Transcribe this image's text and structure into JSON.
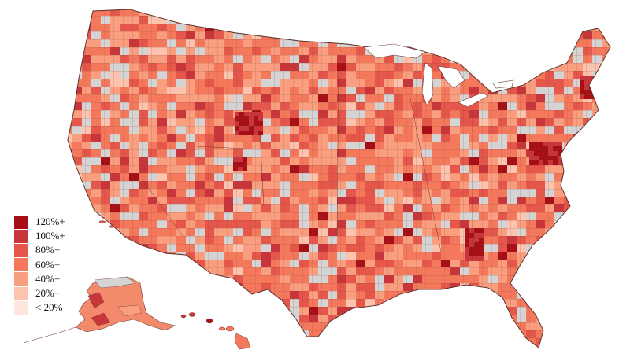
{
  "legend": {
    "entries": [
      {
        "label": "120%+",
        "color": "#a50f15"
      },
      {
        "label": "100%+",
        "color": "#c8353b"
      },
      {
        "label": "80%+",
        "color": "#e4574a"
      },
      {
        "label": "60%+",
        "color": "#f4795c"
      },
      {
        "label": "40%+",
        "color": "#fa9e80"
      },
      {
        "label": "20%+",
        "color": "#fcc3ae"
      },
      {
        "label": "< 20%",
        "color": "#fde6de"
      }
    ]
  },
  "colors": {
    "no_data": "#d4d4d4",
    "border": "#6e3b33",
    "land_base": "#f48a6c"
  }
}
